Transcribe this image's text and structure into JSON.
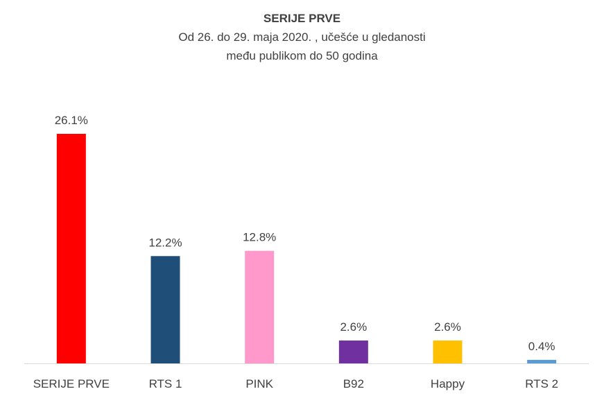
{
  "chart_data": {
    "type": "bar",
    "title": "SERIJE PRVE",
    "subtitle_lines": [
      "Od 26. do 29. maja 2020. , učešće u gledanosti",
      "među publikom do 50 godina"
    ],
    "categories": [
      "SERIJE PRVE",
      "RTS 1",
      "PINK",
      "B92",
      "Happy",
      "RTS 2"
    ],
    "values": [
      26.1,
      12.2,
      12.8,
      2.6,
      2.6,
      0.4
    ],
    "data_labels": [
      "26.1%",
      "12.2%",
      "12.8%",
      "2.6%",
      "2.6%",
      "0.4%"
    ],
    "colors": [
      "#FF0000",
      "#1F4E79",
      "#FF99CC",
      "#7030A0",
      "#FFC000",
      "#5B9BD5"
    ],
    "xlabel": "",
    "ylabel": "",
    "ylim": [
      0,
      26.1
    ],
    "grid": false,
    "legend": "none"
  }
}
